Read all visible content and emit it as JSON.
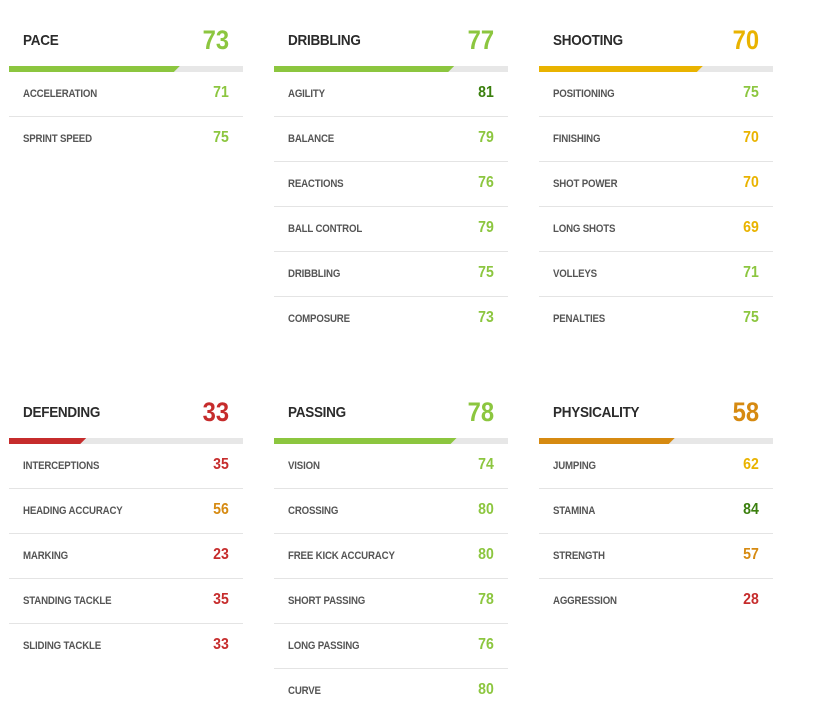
{
  "colors": {
    "dark_green": "#3a7f0d",
    "green": "#8cc63f",
    "yellow": "#e9b300",
    "orange": "#d68a11",
    "red": "#c62c2c"
  },
  "categories": [
    {
      "name": "PACE",
      "score": "73",
      "fill": 0.73,
      "color": "#8cc63f",
      "attributes": [
        {
          "label": "ACCELERATION",
          "value": "71",
          "color": "#8cc63f"
        },
        {
          "label": "SPRINT SPEED",
          "value": "75",
          "color": "#8cc63f"
        }
      ]
    },
    {
      "name": "DRIBBLING",
      "score": "77",
      "fill": 0.77,
      "color": "#8cc63f",
      "attributes": [
        {
          "label": "AGILITY",
          "value": "81",
          "color": "#3a7f0d"
        },
        {
          "label": "BALANCE",
          "value": "79",
          "color": "#8cc63f"
        },
        {
          "label": "REACTIONS",
          "value": "76",
          "color": "#8cc63f"
        },
        {
          "label": "BALL CONTROL",
          "value": "79",
          "color": "#8cc63f"
        },
        {
          "label": "DRIBBLING",
          "value": "75",
          "color": "#8cc63f"
        },
        {
          "label": "COMPOSURE",
          "value": "73",
          "color": "#8cc63f"
        }
      ]
    },
    {
      "name": "SHOOTING",
      "score": "70",
      "fill": 0.7,
      "color": "#e9b300",
      "attributes": [
        {
          "label": "POSITIONING",
          "value": "75",
          "color": "#8cc63f"
        },
        {
          "label": "FINISHING",
          "value": "70",
          "color": "#e9b300"
        },
        {
          "label": "SHOT POWER",
          "value": "70",
          "color": "#e9b300"
        },
        {
          "label": "LONG SHOTS",
          "value": "69",
          "color": "#e9b300"
        },
        {
          "label": "VOLLEYS",
          "value": "71",
          "color": "#8cc63f"
        },
        {
          "label": "PENALTIES",
          "value": "75",
          "color": "#8cc63f"
        }
      ]
    },
    {
      "name": "DEFENDING",
      "score": "33",
      "fill": 0.33,
      "color": "#c62c2c",
      "attributes": [
        {
          "label": "INTERCEPTIONS",
          "value": "35",
          "color": "#c62c2c"
        },
        {
          "label": "HEADING ACCURACY",
          "value": "56",
          "color": "#d68a11"
        },
        {
          "label": "MARKING",
          "value": "23",
          "color": "#c62c2c"
        },
        {
          "label": "STANDING TACKLE",
          "value": "35",
          "color": "#c62c2c"
        },
        {
          "label": "SLIDING TACKLE",
          "value": "33",
          "color": "#c62c2c"
        }
      ]
    },
    {
      "name": "PASSING",
      "score": "78",
      "fill": 0.78,
      "color": "#8cc63f",
      "attributes": [
        {
          "label": "VISION",
          "value": "74",
          "color": "#8cc63f"
        },
        {
          "label": "CROSSING",
          "value": "80",
          "color": "#8cc63f"
        },
        {
          "label": "FREE KICK ACCURACY",
          "value": "80",
          "color": "#8cc63f"
        },
        {
          "label": "SHORT PASSING",
          "value": "78",
          "color": "#8cc63f"
        },
        {
          "label": "LONG PASSING",
          "value": "76",
          "color": "#8cc63f"
        },
        {
          "label": "CURVE",
          "value": "80",
          "color": "#8cc63f"
        }
      ]
    },
    {
      "name": "PHYSICALITY",
      "score": "58",
      "fill": 0.58,
      "color": "#d68a11",
      "attributes": [
        {
          "label": "JUMPING",
          "value": "62",
          "color": "#e9b300"
        },
        {
          "label": "STAMINA",
          "value": "84",
          "color": "#3a7f0d"
        },
        {
          "label": "STRENGTH",
          "value": "57",
          "color": "#d68a11"
        },
        {
          "label": "AGGRESSION",
          "value": "28",
          "color": "#c62c2c"
        }
      ]
    }
  ]
}
